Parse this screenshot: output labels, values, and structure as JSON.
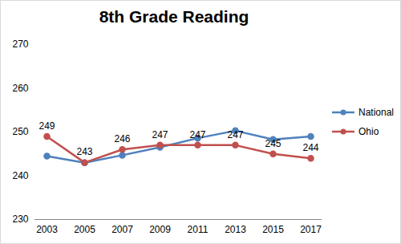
{
  "chart_data": {
    "type": "line",
    "title": "8th Grade Reading",
    "categories": [
      "2003",
      "2005",
      "2007",
      "2009",
      "2011",
      "2013",
      "2015",
      "2017"
    ],
    "series": [
      {
        "name": "National",
        "color": "#4f81bd",
        "marker": "circle",
        "line_style": "solid",
        "values": [
          244.5,
          243,
          244.7,
          246.5,
          248.6,
          250.3,
          248.3,
          249
        ]
      },
      {
        "name": "Ohio",
        "color": "#c0504d",
        "marker": "circle",
        "line_style": "solid",
        "data_labels": true,
        "values": [
          249,
          243,
          246,
          247,
          247,
          247,
          245,
          244
        ]
      }
    ],
    "ylim": [
      230,
      270
    ],
    "yticks": [
      230,
      240,
      250,
      260,
      270
    ],
    "grid": false,
    "legend": "right"
  }
}
